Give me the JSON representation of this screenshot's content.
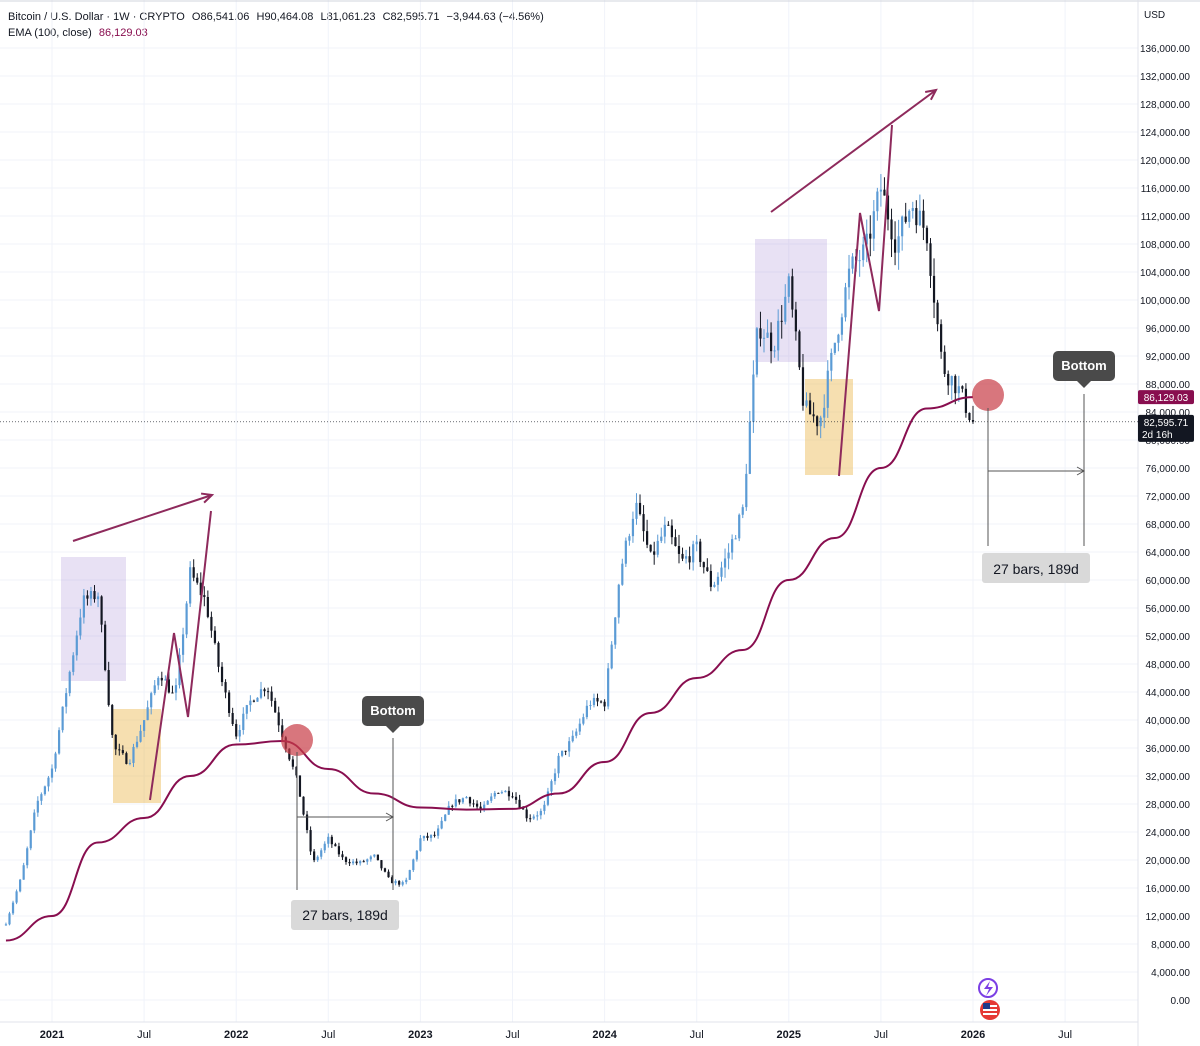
{
  "legend": {
    "symbol": "Bitcoin / U.S. Dollar · 1W · CRYPTO",
    "o_label": "O",
    "o": "86,541.06",
    "h_label": "H",
    "h": "90,464.08",
    "l_label": "L",
    "l": "81,061.23",
    "c_label": "C",
    "c": "82,595.71",
    "change": "−3,944.63 (−4.56%)",
    "ema_label": "EMA (100, close)",
    "ema_value": "86,129.03"
  },
  "currency": "USD",
  "price_tags": {
    "ema": "86,129.03",
    "last": "82,595.71",
    "countdown": "2d 16h"
  },
  "annotations": {
    "bottom_label_1": "Bottom",
    "bottom_label_2": "Bottom",
    "range_label_1": "27 bars, 189d",
    "range_label_2": "27 bars, 189d"
  },
  "colors": {
    "up": "#5b9bd5",
    "down": "#131722",
    "ema": "#880e4f",
    "arrow": "#8e2a5c",
    "violet_box": "rgba(179,157,219,0.30)",
    "orange_box": "rgba(232,176,58,0.40)",
    "circle": "rgba(200,60,70,0.70)"
  },
  "chart_data": {
    "type": "candlestick",
    "timeframe": "1W",
    "y_ticks": [
      0,
      4000,
      8000,
      12000,
      16000,
      20000,
      24000,
      28000,
      32000,
      36000,
      40000,
      44000,
      48000,
      52000,
      56000,
      60000,
      64000,
      68000,
      72000,
      76000,
      80000,
      84000,
      88000,
      92000,
      96000,
      100000,
      104000,
      108000,
      112000,
      116000,
      120000,
      124000,
      128000,
      132000,
      136000
    ],
    "y_tick_labels": [
      "0.00",
      "4,000.00",
      "8,000.00",
      "12,000.00",
      "16,000.00",
      "20,000.00",
      "24,000.00",
      "28,000.00",
      "32,000.00",
      "36,000.00",
      "40,000.00",
      "44,000.00",
      "48,000.00",
      "52,000.00",
      "56,000.00",
      "60,000.00",
      "64,000.00",
      "68,000.00",
      "72,000.00",
      "76,000.00",
      "80,000.00",
      "84,000.00",
      "88,000.00",
      "92,000.00",
      "96,000.00",
      "100,000.00",
      "104,000.00",
      "108,000.00",
      "112,000.00",
      "116,000.00",
      "120,000.00",
      "124,000.00",
      "128,000.00",
      "132,000.00",
      "136,000.00"
    ],
    "x_ticks": [
      {
        "label": "2021",
        "date": "2021-01",
        "bold": true
      },
      {
        "label": "Jul",
        "date": "2021-07",
        "bold": false
      },
      {
        "label": "2022",
        "date": "2022-01",
        "bold": true
      },
      {
        "label": "Jul",
        "date": "2022-07",
        "bold": false
      },
      {
        "label": "2023",
        "date": "2023-01",
        "bold": true
      },
      {
        "label": "Jul",
        "date": "2023-07",
        "bold": false
      },
      {
        "label": "2024",
        "date": "2024-01",
        "bold": true
      },
      {
        "label": "Jul",
        "date": "2024-07",
        "bold": false
      },
      {
        "label": "2025",
        "date": "2025-01",
        "bold": true
      },
      {
        "label": "Jul",
        "date": "2025-07",
        "bold": false
      },
      {
        "label": "2026",
        "date": "2026-01",
        "bold": true
      },
      {
        "label": "Jul",
        "date": "2026-07",
        "bold": false
      }
    ],
    "close_path": [
      [
        "2020-10",
        11000
      ],
      [
        "2020-11",
        17500
      ],
      [
        "2020-12",
        28000
      ],
      [
        "2021-01",
        33000
      ],
      [
        "2021-02",
        45000
      ],
      [
        "2021-03",
        57000
      ],
      [
        "2021-04",
        58000
      ],
      [
        "2021-05",
        36000
      ],
      [
        "2021-06",
        34000
      ],
      [
        "2021-07",
        40000
      ],
      [
        "2021-08",
        47000
      ],
      [
        "2021-09",
        43000
      ],
      [
        "2021-10",
        61000
      ],
      [
        "2021-11",
        57000
      ],
      [
        "2021-12",
        46000
      ],
      [
        "2022-01",
        38000
      ],
      [
        "2022-02",
        43000
      ],
      [
        "2022-03",
        45000
      ],
      [
        "2022-04",
        38000
      ],
      [
        "2022-05",
        31000
      ],
      [
        "2022-06",
        19500
      ],
      [
        "2022-07",
        23000
      ],
      [
        "2022-08",
        20000
      ],
      [
        "2022-09",
        19500
      ],
      [
        "2022-10",
        20500
      ],
      [
        "2022-11",
        17000
      ],
      [
        "2022-12",
        16500
      ],
      [
        "2023-01",
        23000
      ],
      [
        "2023-02",
        23500
      ],
      [
        "2023-03",
        28000
      ],
      [
        "2023-04",
        29000
      ],
      [
        "2023-05",
        27000
      ],
      [
        "2023-06",
        30000
      ],
      [
        "2023-07",
        29500
      ],
      [
        "2023-08",
        26000
      ],
      [
        "2023-09",
        27000
      ],
      [
        "2023-10",
        34500
      ],
      [
        "2023-11",
        37500
      ],
      [
        "2023-12",
        42500
      ],
      [
        "2024-01",
        42500
      ],
      [
        "2024-02",
        61000
      ],
      [
        "2024-03",
        71000
      ],
      [
        "2024-04",
        63000
      ],
      [
        "2024-05",
        67500
      ],
      [
        "2024-06",
        62500
      ],
      [
        "2024-07",
        64500
      ],
      [
        "2024-08",
        59000
      ],
      [
        "2024-09",
        63500
      ],
      [
        "2024-10",
        70000
      ],
      [
        "2024-11",
        96500
      ],
      [
        "2024-12",
        93500
      ],
      [
        "2025-01",
        102000
      ],
      [
        "2025-02",
        84500
      ],
      [
        "2025-03",
        82500
      ],
      [
        "2025-04",
        94000
      ],
      [
        "2025-05",
        104500
      ],
      [
        "2025-06",
        107000
      ],
      [
        "2025-07",
        116000
      ],
      [
        "2025-08",
        108000
      ],
      [
        "2025-09",
        114000
      ],
      [
        "2025-10",
        109500
      ],
      [
        "2025-11",
        90500
      ],
      [
        "2025-12",
        87500
      ],
      [
        "2026-01",
        82600
      ]
    ],
    "ema_path": [
      [
        "2020-10",
        8500
      ],
      [
        "2021-01",
        12000
      ],
      [
        "2021-04",
        22500
      ],
      [
        "2021-07",
        26000
      ],
      [
        "2021-10",
        32000
      ],
      [
        "2022-01",
        36500
      ],
      [
        "2022-04",
        37000
      ],
      [
        "2022-07",
        33000
      ],
      [
        "2022-10",
        29500
      ],
      [
        "2023-01",
        27500
      ],
      [
        "2023-04",
        27200
      ],
      [
        "2023-07",
        27300
      ],
      [
        "2023-10",
        29500
      ],
      [
        "2024-01",
        34000
      ],
      [
        "2024-04",
        41000
      ],
      [
        "2024-07",
        46000
      ],
      [
        "2024-10",
        50000
      ],
      [
        "2025-01",
        60000
      ],
      [
        "2025-04",
        66000
      ],
      [
        "2025-07",
        76000
      ],
      [
        "2025-10",
        84500
      ],
      [
        "2026-01",
        86129
      ]
    ]
  }
}
